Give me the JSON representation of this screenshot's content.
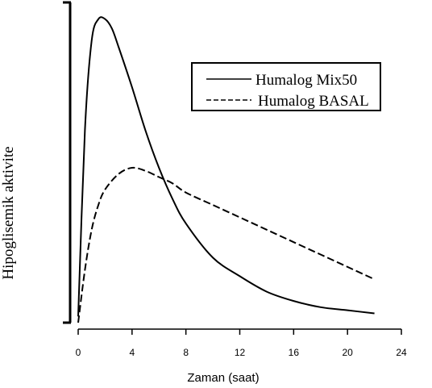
{
  "chart_data": {
    "type": "line",
    "xlabel": "Zaman (saat)",
    "ylabel": "Hipoglisemik aktivite",
    "xlim": [
      0,
      24
    ],
    "ylim": [
      0,
      1
    ],
    "xticks": [
      0,
      4,
      8,
      12,
      16,
      20,
      24
    ],
    "x_tick_labels": [
      "0",
      "4",
      "8",
      "12",
      "16",
      "20",
      "24"
    ],
    "grid": false,
    "legend_position": "top-right",
    "series": [
      {
        "name": "Humalog Mix50",
        "style": "solid",
        "x": [
          0,
          0.5,
          1,
          1.5,
          2,
          2.5,
          3,
          4,
          5,
          6,
          7,
          8,
          10,
          12,
          14,
          16,
          18,
          20,
          22
        ],
        "y": [
          0.02,
          0.62,
          0.91,
          0.98,
          0.98,
          0.95,
          0.89,
          0.76,
          0.62,
          0.5,
          0.4,
          0.32,
          0.21,
          0.15,
          0.1,
          0.07,
          0.05,
          0.04,
          0.03
        ]
      },
      {
        "name": "Humalog BASAL",
        "style": "dashed",
        "x": [
          0,
          0.5,
          1,
          1.5,
          2,
          3,
          4,
          5,
          6,
          7,
          8,
          10,
          12,
          14,
          16,
          18,
          20,
          22
        ],
        "y": [
          0.0,
          0.17,
          0.3,
          0.38,
          0.43,
          0.48,
          0.5,
          0.49,
          0.47,
          0.45,
          0.42,
          0.38,
          0.34,
          0.3,
          0.26,
          0.22,
          0.18,
          0.14
        ]
      }
    ]
  },
  "colors": {
    "line": "#000000",
    "background": "#ffffff"
  }
}
